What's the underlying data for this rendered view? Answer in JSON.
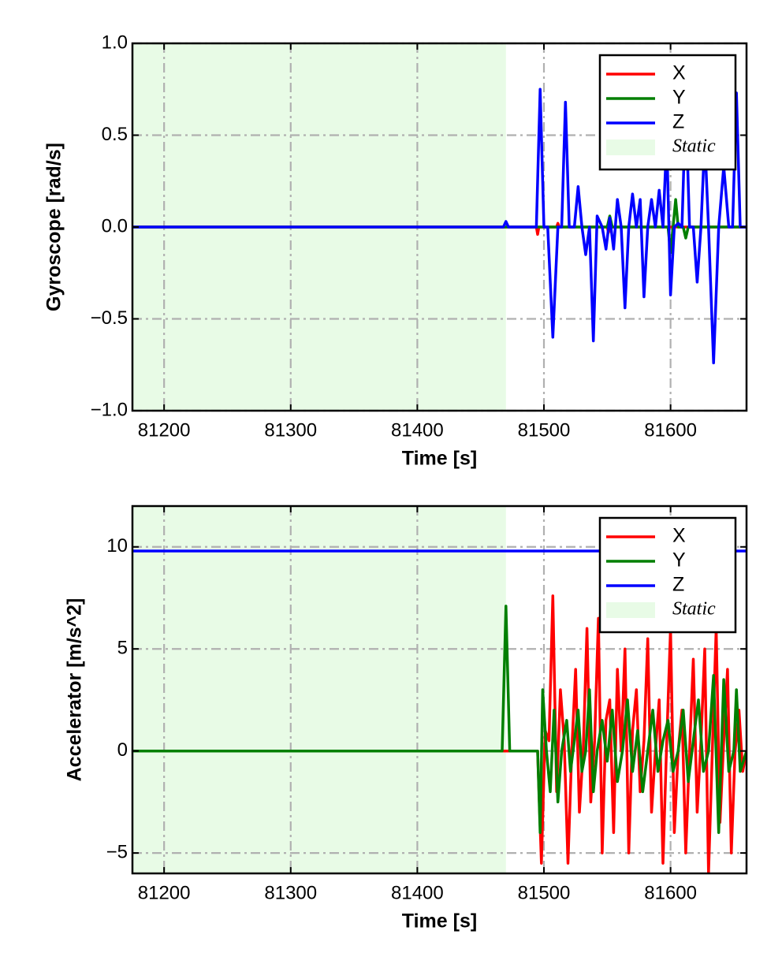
{
  "chart_data": [
    {
      "type": "line",
      "xlabel": "Time [s]",
      "ylabel": "Gyroscope [rad/s]",
      "xlim": [
        81175,
        81660
      ],
      "ylim": [
        -1.0,
        1.0
      ],
      "x_ticks": [
        81200,
        81300,
        81400,
        81500,
        81600
      ],
      "x_tick_labels": [
        "81200",
        "81300",
        "81400",
        "81500",
        "81600"
      ],
      "y_ticks": [
        -1.0,
        -0.5,
        0.0,
        0.5,
        1.0
      ],
      "y_tick_labels": [
        "−1.0",
        "−0.5",
        "0.0",
        "0.5",
        "1.0"
      ],
      "grid": true,
      "legend_position": "top-right",
      "static_region": {
        "label": "Static",
        "x_start": 81175,
        "x_end": 81470,
        "color": "#e8fbe6"
      },
      "series": [
        {
          "name": "X",
          "color": "#ff0000",
          "x": [
            81175,
            81470,
            81494,
            81495,
            81496,
            81510,
            81511,
            81512,
            81550,
            81551,
            81552,
            81660
          ],
          "y": [
            0.0,
            0.0,
            0.0,
            -0.04,
            0.0,
            0.0,
            0.02,
            0.0,
            0.0,
            -0.03,
            0.0,
            0.0
          ]
        },
        {
          "name": "Y",
          "color": "#007f00",
          "x": [
            81175,
            81550,
            81552,
            81554,
            81598,
            81600,
            81602,
            81604,
            81606,
            81610,
            81612,
            81614,
            81660
          ],
          "y": [
            0.0,
            0.0,
            0.06,
            0.0,
            0.0,
            -0.14,
            0.0,
            0.15,
            0.0,
            0.0,
            -0.06,
            0.0,
            0.0
          ]
        },
        {
          "name": "Z",
          "color": "#0000ff",
          "x": [
            81175,
            81468,
            81470,
            81472,
            81494,
            81497,
            81500,
            81503,
            81507,
            81511,
            81514,
            81517,
            81520,
            81524,
            81527,
            81530,
            81533,
            81536,
            81539,
            81542,
            81546,
            81549,
            81552,
            81555,
            81558,
            81561,
            81564,
            81567,
            81570,
            81573,
            81576,
            81579,
            81582,
            81585,
            81588,
            81591,
            81594,
            81597,
            81600,
            81603,
            81606,
            81609,
            81612,
            81615,
            81618,
            81621,
            81624,
            81627,
            81630,
            81634,
            81638,
            81642,
            81646,
            81649,
            81652,
            81655,
            81660
          ],
          "y": [
            0.0,
            0.0,
            0.03,
            0.0,
            0.0,
            0.75,
            0.0,
            0.0,
            -0.6,
            0.0,
            0.0,
            0.68,
            0.0,
            0.0,
            0.22,
            0.0,
            -0.15,
            0.0,
            -0.62,
            0.06,
            0.0,
            -0.12,
            0.05,
            -0.12,
            0.15,
            0.0,
            -0.44,
            0.0,
            0.18,
            0.0,
            0.15,
            -0.38,
            0.0,
            0.15,
            0.0,
            0.2,
            0.0,
            0.48,
            -0.37,
            0.0,
            0.02,
            0.0,
            0.68,
            0.0,
            0.0,
            -0.3,
            0.0,
            0.48,
            0.0,
            -0.74,
            0.0,
            0.33,
            0.0,
            0.0,
            0.73,
            0.0,
            0.0
          ]
        }
      ]
    },
    {
      "type": "line",
      "xlabel": "Time [s]",
      "ylabel": "Accelerator [m/s^2]",
      "xlim": [
        81175,
        81660
      ],
      "ylim": [
        -6,
        12
      ],
      "x_ticks": [
        81200,
        81300,
        81400,
        81500,
        81600
      ],
      "x_tick_labels": [
        "81200",
        "81300",
        "81400",
        "81500",
        "81600"
      ],
      "y_ticks": [
        -5,
        0,
        5,
        10
      ],
      "y_tick_labels": [
        "−5",
        "0",
        "5",
        "10"
      ],
      "grid": true,
      "legend_position": "top-right",
      "static_region": {
        "label": "Static",
        "x_start": 81175,
        "x_end": 81470,
        "color": "#e8fbe6"
      },
      "series": [
        {
          "name": "X",
          "color": "#ff0000",
          "x": [
            81175,
            81495,
            81498,
            81501,
            81504,
            81507,
            81510,
            81513,
            81516,
            81519,
            81522,
            81525,
            81528,
            81531,
            81534,
            81537,
            81540,
            81543,
            81546,
            81549,
            81552,
            81555,
            81558,
            81561,
            81564,
            81567,
            81570,
            81573,
            81576,
            81579,
            81582,
            81585,
            81588,
            81591,
            81594,
            81597,
            81600,
            81603,
            81606,
            81609,
            81612,
            81615,
            81618,
            81621,
            81624,
            81627,
            81630,
            81633,
            81636,
            81639,
            81642,
            81645,
            81648,
            81651,
            81654,
            81657,
            81660
          ],
          "y": [
            0.0,
            0.0,
            -5.5,
            1.0,
            0.5,
            7.6,
            -2.0,
            3.0,
            0.5,
            -5.5,
            0.0,
            4.0,
            -3.0,
            0.0,
            6.0,
            -2.5,
            0.5,
            6.5,
            -5.0,
            1.5,
            2.5,
            -4.0,
            4.0,
            0.0,
            5.0,
            -5.0,
            1.0,
            3.0,
            -2.0,
            0.5,
            5.5,
            -3.0,
            0.0,
            2.5,
            -5.5,
            0.5,
            6.0,
            -4.0,
            0.0,
            2.0,
            -5.0,
            0.0,
            4.5,
            -3.0,
            0.5,
            5.0,
            -6.0,
            0.0,
            6.0,
            -3.5,
            0.5,
            4.0,
            -5.0,
            0.0,
            2.0,
            -1.0,
            0.0
          ]
        },
        {
          "name": "Y",
          "color": "#007f00",
          "x": [
            81175,
            81467,
            81470,
            81473,
            81476,
            81495,
            81497,
            81499,
            81502,
            81505,
            81508,
            81511,
            81514,
            81518,
            81521,
            81524,
            81527,
            81530,
            81533,
            81536,
            81539,
            81542,
            81546,
            81550,
            81554,
            81558,
            81562,
            81566,
            81570,
            81574,
            81578,
            81582,
            81586,
            81590,
            81594,
            81598,
            81602,
            81606,
            81610,
            81614,
            81618,
            81622,
            81626,
            81630,
            81634,
            81638,
            81642,
            81646,
            81650,
            81652,
            81655,
            81660
          ],
          "y": [
            0.0,
            0.0,
            7.1,
            0.0,
            0.0,
            0.0,
            -4.0,
            3.0,
            0.0,
            -2.0,
            2.0,
            -2.5,
            0.0,
            1.5,
            -1.0,
            0.5,
            2.0,
            -1.0,
            0.0,
            3.0,
            -2.0,
            0.0,
            1.5,
            -0.5,
            2.0,
            -1.5,
            0.0,
            2.5,
            -1.0,
            1.0,
            -2.0,
            0.0,
            2.0,
            -1.0,
            0.5,
            1.5,
            -1.0,
            0.0,
            2.0,
            -1.5,
            0.5,
            2.5,
            -1.0,
            0.0,
            3.7,
            -4.0,
            3.5,
            -1.0,
            0.0,
            3.0,
            -1.0,
            0.0
          ]
        },
        {
          "name": "Z",
          "color": "#0000ff",
          "x": [
            81175,
            81660
          ],
          "y": [
            9.8,
            9.8
          ]
        }
      ]
    }
  ]
}
